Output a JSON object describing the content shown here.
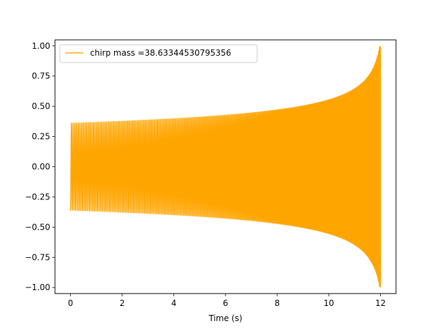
{
  "chart_data": {
    "type": "line",
    "title": "",
    "xlabel": "Time (s)",
    "ylabel": "",
    "xlim": [
      -0.6,
      12.6
    ],
    "ylim": [
      -1.05,
      1.05
    ],
    "x_ticks": [
      0,
      2,
      4,
      6,
      8,
      10,
      12
    ],
    "x_tick_labels": [
      "0",
      "2",
      "4",
      "6",
      "8",
      "10",
      "12"
    ],
    "y_ticks": [
      -1.0,
      -0.75,
      -0.5,
      -0.25,
      0.0,
      0.25,
      0.5,
      0.75,
      1.0
    ],
    "y_tick_labels": [
      "−1.00",
      "−0.75",
      "−0.50",
      "−0.25",
      "0.00",
      "0.25",
      "0.50",
      "0.75",
      "1.00"
    ],
    "grid": false,
    "legend_position": "top-left",
    "series": [
      {
        "name": "chirp mass =38.63344530795356",
        "color": "#ffa500",
        "signal": "chirp",
        "t_start": 0,
        "t_end": 12,
        "start_amplitude": 0.36,
        "peak_amplitude": 1.0,
        "end_value": -0.97
      }
    ]
  }
}
